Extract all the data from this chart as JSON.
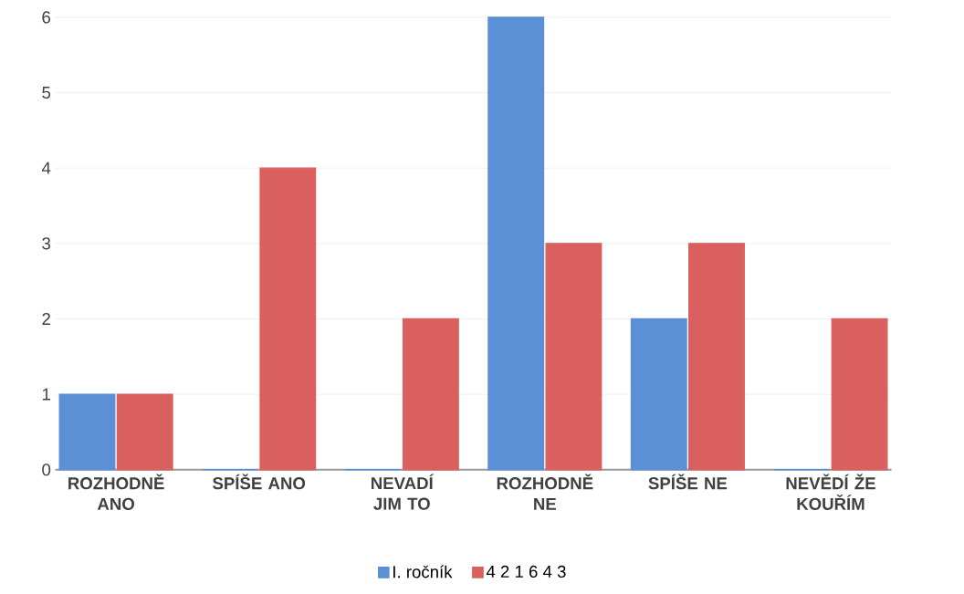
{
  "chart_data": {
    "type": "bar",
    "categories": [
      "ROZHODNĚ ANO",
      "SPÍŠE ANO",
      "NEVADÍ JIM TO",
      "ROZHODNĚ NE",
      "SPÍŠE NE",
      "NEVĚDÍ ŽE KOUŘÍM"
    ],
    "series": [
      {
        "name": "I. ročník",
        "color": "#5b8fd6",
        "values": [
          1,
          0,
          0,
          6,
          2,
          0
        ]
      },
      {
        "name": "4 2 1 6 4 3",
        "color": "#d9605e",
        "values": [
          1,
          4,
          2,
          3,
          3,
          2
        ]
      }
    ],
    "ylim": [
      0,
      6
    ],
    "yticks": [
      0,
      1,
      2,
      3,
      4,
      5,
      6
    ],
    "grid": "y",
    "legend": "bottom"
  }
}
